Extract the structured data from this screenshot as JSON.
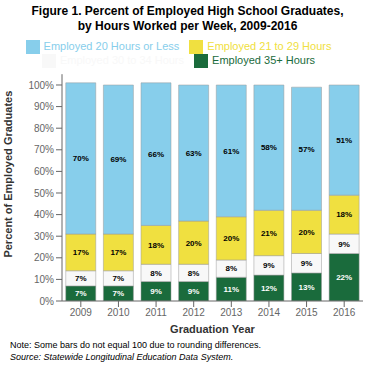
{
  "chart_data": {
    "type": "bar",
    "stacked": true,
    "data_labels": true,
    "grid": false,
    "legend": "top",
    "title": "Figure 1. Percent of Employed High School Graduates,",
    "subtitle": "by Hours Worked per Week, 2009-2016",
    "x_label": "Graduation Year",
    "y_label": "Percent of Employed Graduates",
    "annotations": [
      "Note: Some bars do not equal 100 due to rounding differences.",
      "Source: Statewide Longitudinal Education Data System."
    ],
    "categories": [
      "2009",
      "2010",
      "2011",
      "2012",
      "2013",
      "2014",
      "2015",
      "2016"
    ],
    "series": [
      {
        "name": "Employed 35+ Hours",
        "color": "#1a6b3c",
        "values": [
          7,
          7,
          9,
          9,
          11,
          12,
          13,
          22
        ],
        "value_labels": [
          "7%",
          "7%",
          "9%",
          "9%",
          "11%",
          "12%",
          "13%",
          "22%"
        ]
      },
      {
        "name": "Employed 30 to 34 Hours",
        "color": "#f8f8f8",
        "values": [
          7,
          7,
          8,
          8,
          8,
          9,
          9,
          9
        ],
        "value_labels": [
          "7%",
          "7%",
          "8%",
          "8%",
          "8%",
          "9%",
          "9%",
          "9%"
        ]
      },
      {
        "name": "Employed 21 to 29 Hours",
        "color": "#f0e040",
        "values": [
          17,
          17,
          18,
          20,
          20,
          21,
          20,
          18
        ],
        "value_labels": [
          "17%",
          "17%",
          "18%",
          "20%",
          "20%",
          "21%",
          "20%",
          "18%"
        ]
      },
      {
        "name": "Employed 20 Hours or Less",
        "color": "#87ceeb",
        "values": [
          70,
          69,
          66,
          63,
          61,
          58,
          57,
          51
        ],
        "value_labels": [
          "70%",
          "69%",
          "66%",
          "63%",
          "61%",
          "58%",
          "57%",
          "51%"
        ]
      }
    ],
    "ylim": [
      0,
      105
    ],
    "yticks": [
      {
        "value": 0,
        "label": "0%"
      },
      {
        "value": 10,
        "label": "10%"
      },
      {
        "value": 20,
        "label": "20%"
      },
      {
        "value": 30,
        "label": "30%"
      },
      {
        "value": 40,
        "label": "40%"
      },
      {
        "value": 50,
        "label": "50%"
      },
      {
        "value": 60,
        "label": "60%"
      },
      {
        "value": 70,
        "label": "70%"
      },
      {
        "value": 80,
        "label": "80%"
      },
      {
        "value": 90,
        "label": "90%"
      },
      {
        "value": 100,
        "label": "100%"
      }
    ]
  }
}
